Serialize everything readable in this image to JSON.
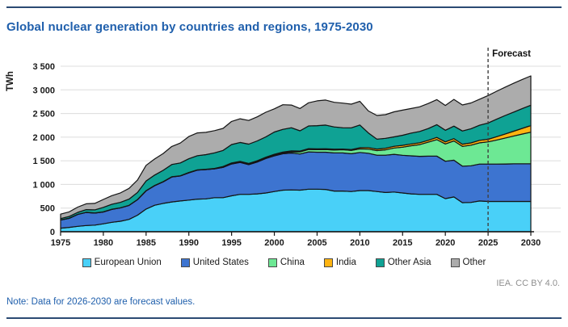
{
  "header": {
    "title": "Global nuclear generation by countries and regions, 1975-2030"
  },
  "footer": {
    "attribution": "IEA. CC BY 4.0.",
    "note": "Note: Data for 2026-2030 are forecast values."
  },
  "colors": {
    "accent_blue": "#1F5FAC",
    "rule": "#2B4A73",
    "gridline": "#DCDCDC",
    "axis": "#141414",
    "band_outline": "#141414",
    "forecast_line": "#3F3F3F",
    "attribution_gray": "#8F8F8F"
  },
  "chart_data": {
    "type": "area",
    "stacked": true,
    "title": "Global nuclear generation by countries and regions, 1975-2030",
    "xlabel": "",
    "ylabel": "TWh",
    "ylim": [
      0,
      3500
    ],
    "xlim": [
      1975,
      2030
    ],
    "grid": true,
    "legend_position": "bottom",
    "forecast": {
      "x": 2025,
      "label": "Forecast"
    },
    "yticks": {
      "values": [
        0,
        500,
        1000,
        1500,
        2000,
        2500,
        3000,
        3500
      ],
      "labels": [
        "0",
        "500",
        "1 000",
        "1 500",
        "2 000",
        "2 500",
        "3 000",
        "3 500"
      ]
    },
    "xticks": {
      "values": [
        1975,
        1980,
        1985,
        1990,
        1995,
        2000,
        2005,
        2010,
        2015,
        2020,
        2025,
        2030
      ],
      "labels": [
        "1975",
        "1980",
        "1985",
        "1990",
        "1995",
        "2000",
        "2005",
        "2010",
        "2015",
        "2020",
        "2025",
        "2030"
      ]
    },
    "years": [
      1975,
      1976,
      1977,
      1978,
      1979,
      1980,
      1981,
      1982,
      1983,
      1984,
      1985,
      1986,
      1987,
      1988,
      1989,
      1990,
      1991,
      1992,
      1993,
      1994,
      1995,
      1996,
      1997,
      1998,
      1999,
      2000,
      2001,
      2002,
      2003,
      2004,
      2005,
      2006,
      2007,
      2008,
      2009,
      2010,
      2011,
      2012,
      2013,
      2014,
      2015,
      2016,
      2017,
      2018,
      2019,
      2020,
      2021,
      2022,
      2023,
      2024,
      2025,
      2026,
      2027,
      2028,
      2029,
      2030
    ],
    "series": [
      {
        "name": "European Union",
        "color": "#49D0F8",
        "values": [
          75,
          92,
          115,
          132,
          140,
          167,
          200,
          222,
          262,
          350,
          480,
          560,
          600,
          630,
          650,
          670,
          690,
          695,
          720,
          720,
          760,
          790,
          790,
          800,
          820,
          850,
          880,
          885,
          880,
          900,
          900,
          895,
          860,
          860,
          850,
          870,
          870,
          850,
          830,
          840,
          820,
          800,
          790,
          790,
          790,
          700,
          735,
          615,
          620,
          650,
          640,
          640,
          640,
          640,
          640,
          640
        ]
      },
      {
        "name": "United States",
        "color": "#3D74D0",
        "values": [
          173,
          191,
          251,
          276,
          255,
          251,
          273,
          283,
          294,
          328,
          384,
          414,
          455,
          527,
          529,
          577,
          613,
          619,
          610,
          640,
          673,
          675,
          628,
          674,
          728,
          754,
          769,
          780,
          764,
          789,
          782,
          787,
          806,
          806,
          799,
          807,
          790,
          769,
          789,
          797,
          797,
          805,
          805,
          808,
          809,
          790,
          778,
          772,
          775,
          780,
          790,
          790,
          793,
          795,
          795,
          795
        ]
      },
      {
        "name": "China",
        "color": "#6DE894",
        "values": [
          0,
          0,
          0,
          0,
          0,
          0,
          0,
          0,
          0,
          0,
          0,
          0,
          0,
          0,
          0,
          0,
          0,
          0,
          2,
          14,
          13,
          14,
          14,
          14,
          15,
          17,
          17,
          25,
          43,
          50,
          53,
          55,
          62,
          68,
          70,
          74,
          87,
          97,
          112,
          133,
          171,
          213,
          248,
          295,
          349,
          366,
          408,
          418,
          435,
          450,
          470,
          510,
          550,
          590,
          630,
          670
        ]
      },
      {
        "name": "India",
        "color": "#FFB411",
        "values": [
          3,
          3,
          2,
          3,
          3,
          3,
          3,
          2,
          3,
          4,
          5,
          5,
          5,
          6,
          5,
          6,
          6,
          7,
          6,
          6,
          8,
          9,
          10,
          12,
          13,
          17,
          19,
          19,
          18,
          17,
          18,
          18,
          18,
          15,
          19,
          26,
          32,
          33,
          35,
          36,
          38,
          38,
          38,
          39,
          46,
          45,
          47,
          46,
          48,
          52,
          55,
          70,
          85,
          100,
          120,
          140
        ]
      },
      {
        "name": "Other Asia",
        "color": "#0FA294",
        "values": [
          28,
          36,
          42,
          56,
          65,
          95,
          107,
          115,
          130,
          150,
          205,
          220,
          240,
          260,
          270,
          290,
          300,
          310,
          330,
          340,
          390,
          400,
          410,
          420,
          430,
          470,
          480,
          490,
          430,
          480,
          490,
          500,
          470,
          450,
          460,
          480,
          310,
          210,
          210,
          200,
          215,
          230,
          240,
          250,
          270,
          245,
          265,
          280,
          300,
          320,
          345,
          370,
          390,
          405,
          420,
          430
        ]
      },
      {
        "name": "Other",
        "color": "#ACACAC",
        "values": [
          94,
          98,
          110,
          123,
          137,
          167,
          180,
          200,
          228,
          262,
          330,
          340,
          355,
          380,
          420,
          470,
          480,
          470,
          470,
          465,
          488,
          500,
          500,
          510,
          520,
          490,
          520,
          480,
          470,
          490,
          525,
          530,
          520,
          520,
          500,
          500,
          465,
          500,
          500,
          530,
          530,
          520,
          520,
          530,
          530,
          525,
          565,
          550,
          545,
          550,
          580,
          590,
          600,
          610,
          615,
          620
        ]
      }
    ]
  }
}
